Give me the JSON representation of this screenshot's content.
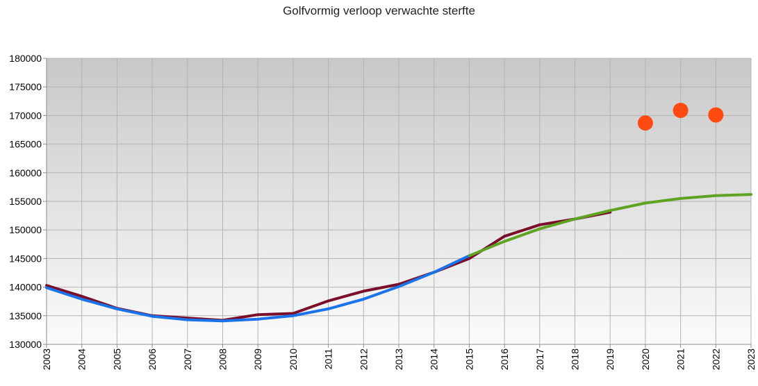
{
  "chart_data": {
    "type": "line",
    "title": "Golfvormig verloop verwachte sterfte",
    "xlabel": "",
    "ylabel": "",
    "xlim": [
      2003,
      2023
    ],
    "ylim": [
      130000,
      180000
    ],
    "y_ticks": [
      130000,
      135000,
      140000,
      145000,
      150000,
      155000,
      160000,
      165000,
      170000,
      175000,
      180000
    ],
    "x_ticks": [
      2003,
      2004,
      2005,
      2006,
      2007,
      2008,
      2009,
      2010,
      2011,
      2012,
      2013,
      2014,
      2015,
      2016,
      2017,
      2018,
      2019,
      2020,
      2021,
      2022,
      2023
    ],
    "grid": true,
    "legend": "none",
    "series": [
      {
        "color": "#7b0f2a",
        "style": "line",
        "x": [
          2003,
          2004,
          2005,
          2006,
          2007,
          2008,
          2009,
          2010,
          2011,
          2012,
          2013,
          2014,
          2015,
          2016,
          2017,
          2018,
          2019
        ],
        "values": [
          140300,
          138400,
          136300,
          135000,
          134600,
          134200,
          135200,
          135400,
          137600,
          139300,
          140500,
          142600,
          145000,
          148900,
          150900,
          151900,
          153100
        ]
      },
      {
        "color": "#1a73e8",
        "style": "line",
        "x": [
          2003,
          2004,
          2005,
          2006,
          2007,
          2008,
          2009,
          2010,
          2011,
          2012,
          2013,
          2014,
          2015
        ],
        "values": [
          139900,
          137900,
          136200,
          134900,
          134300,
          134100,
          134400,
          135000,
          136200,
          137900,
          140100,
          142600,
          145500
        ]
      },
      {
        "color": "#5ea321",
        "style": "line",
        "x": [
          2015,
          2016,
          2017,
          2018,
          2019,
          2020,
          2021,
          2022,
          2023
        ],
        "values": [
          145500,
          148000,
          150200,
          151900,
          153400,
          154700,
          155500,
          156000,
          156200
        ]
      },
      {
        "color": "#ff4a12",
        "style": "scatter",
        "x": [
          2020,
          2021,
          2022
        ],
        "values": [
          168700,
          170900,
          170100
        ]
      }
    ]
  },
  "colors": {
    "plot_bg_top": "#c8c8c8",
    "plot_bg_bottom": "#fbfbfb",
    "grid": "#b3b3b3",
    "axis": "#8c8c8c"
  }
}
